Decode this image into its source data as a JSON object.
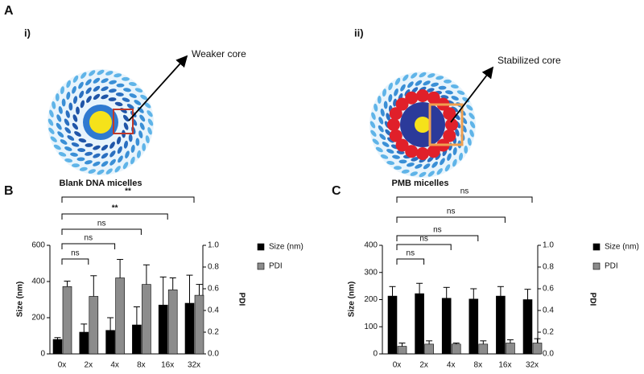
{
  "panel_a": {
    "label": "A",
    "items": [
      {
        "label": "i)",
        "callout": "Weaker core",
        "caption": "Blank DNA micelles"
      },
      {
        "label": "ii)",
        "callout": "Stabilized core",
        "caption": "PMB micelles"
      }
    ]
  },
  "chart_data": [
    {
      "type": "bar",
      "panel_label": "B",
      "categories": [
        "0x",
        "2x",
        "4x",
        "8x",
        "16x",
        "32x"
      ],
      "series": [
        {
          "name": "Size (nm)",
          "color": "#000000",
          "values": [
            80,
            120,
            130,
            160,
            270,
            280
          ],
          "errors": [
            10,
            45,
            70,
            100,
            155,
            155
          ]
        },
        {
          "name": "PDI",
          "color": "#8c8c8c",
          "axis": "y2",
          "values": [
            0.62,
            0.53,
            0.7,
            0.64,
            0.59,
            0.54
          ],
          "errors": [
            0.05,
            0.19,
            0.17,
            0.18,
            0.11,
            0.1
          ]
        }
      ],
      "ylabel": "Size (nm)",
      "y2label": "PDI",
      "ylim": [
        0,
        600
      ],
      "yticks": [
        0,
        200,
        400,
        600
      ],
      "y2lim": [
        0,
        1
      ],
      "y2ticks": [
        {
          "value": 0,
          "label": "0.0"
        },
        0.2,
        0.4,
        0.6,
        0.8,
        {
          "value": 1,
          "label": "1.0"
        }
      ],
      "brackets": [
        {
          "from": "0x",
          "to": "2x",
          "label": "ns"
        },
        {
          "from": "0x",
          "to": "4x",
          "label": "ns"
        },
        {
          "from": "0x",
          "to": "8x",
          "label": "ns"
        },
        {
          "from": "0x",
          "to": "16x",
          "label": "**"
        },
        {
          "from": "0x",
          "to": "32x",
          "label": "**"
        }
      ]
    },
    {
      "type": "bar",
      "panel_label": "C",
      "categories": [
        "0x",
        "2x",
        "4x",
        "8x",
        "16x",
        "32x"
      ],
      "series": [
        {
          "name": "Size (nm)",
          "color": "#000000",
          "values": [
            213,
            222,
            205,
            202,
            213,
            200
          ],
          "errors": [
            35,
            38,
            40,
            38,
            35,
            38
          ]
        },
        {
          "name": "PDI",
          "color": "#8c8c8c",
          "axis": "y2",
          "values": [
            0.07,
            0.09,
            0.09,
            0.09,
            0.1,
            0.1
          ],
          "errors": [
            0.03,
            0.03,
            0.01,
            0.03,
            0.03,
            0.04
          ]
        }
      ],
      "ylabel": "Size (nm)",
      "y2label": "PDI",
      "ylim": [
        0,
        400
      ],
      "yticks": [
        0,
        100,
        200,
        300,
        400
      ],
      "y2lim": [
        0,
        1
      ],
      "y2ticks": [
        {
          "value": 0,
          "label": "0.0"
        },
        0.2,
        0.4,
        0.6,
        0.8,
        {
          "value": 1,
          "label": "1.0"
        }
      ],
      "brackets": [
        {
          "from": "0x",
          "to": "2x",
          "label": "ns"
        },
        {
          "from": "0x",
          "to": "4x",
          "label": "ns"
        },
        {
          "from": "0x",
          "to": "8x",
          "label": "ns"
        },
        {
          "from": "0x",
          "to": "16x",
          "label": "ns"
        },
        {
          "from": "0x",
          "to": "32x",
          "label": "ns"
        }
      ]
    }
  ]
}
